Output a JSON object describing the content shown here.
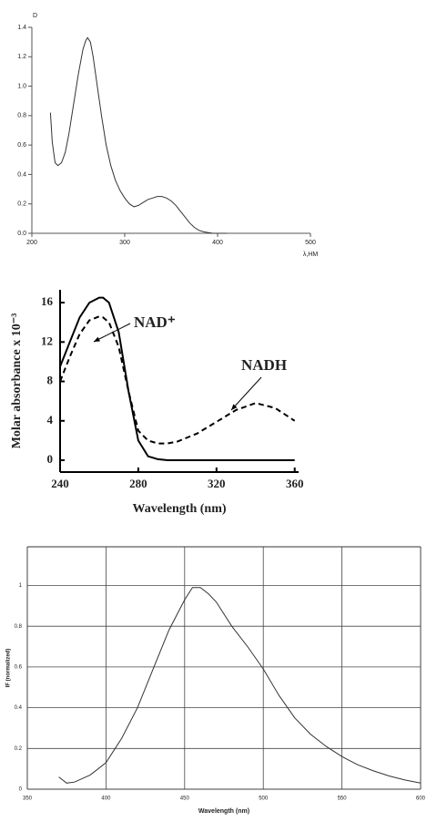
{
  "chart_data": [
    {
      "type": "line",
      "ylabel": "D",
      "xlabel": "λ,HM",
      "color": "#333333",
      "x": [
        220,
        222,
        225,
        228,
        232,
        236,
        240,
        245,
        250,
        255,
        258,
        260,
        263,
        266,
        270,
        275,
        280,
        285,
        290,
        295,
        300,
        305,
        310,
        315,
        320,
        325,
        330,
        335,
        340,
        345,
        350,
        355,
        360,
        365,
        370,
        375,
        380,
        385,
        390,
        395,
        400,
        405,
        410
      ],
      "values": [
        0.82,
        0.62,
        0.48,
        0.46,
        0.48,
        0.55,
        0.68,
        0.88,
        1.08,
        1.25,
        1.31,
        1.33,
        1.3,
        1.2,
        1.02,
        0.8,
        0.6,
        0.46,
        0.36,
        0.29,
        0.24,
        0.2,
        0.18,
        0.19,
        0.21,
        0.23,
        0.24,
        0.25,
        0.25,
        0.24,
        0.22,
        0.19,
        0.15,
        0.11,
        0.07,
        0.04,
        0.02,
        0.01,
        0.005,
        0,
        0,
        0,
        0
      ],
      "xlim": [
        200,
        500
      ],
      "ylim": [
        0,
        1.4
      ],
      "xticks": [
        200,
        300,
        400,
        500
      ],
      "yticks": [
        {
          "value": 0,
          "label": "0.0"
        },
        0.2,
        0.4,
        0.6,
        0.8,
        {
          "value": 1,
          "label": "1.0"
        },
        1.2,
        1.4
      ],
      "grid": false
    },
    {
      "type": "line",
      "xlabel": "Wavelength (nm)",
      "ylabel": "Molar absorbance x 10⁻³",
      "x": [
        240,
        245,
        250,
        255,
        260,
        262,
        265,
        270,
        275,
        280,
        285,
        290,
        295,
        300,
        310,
        320,
        330,
        340,
        350,
        360
      ],
      "series": [
        {
          "name": "NAD⁺",
          "color": "#000000",
          "style": "solid",
          "values": [
            9.5,
            12,
            14.5,
            16,
            16.5,
            16.5,
            16,
            13,
            7,
            2,
            0.4,
            0.1,
            0,
            0,
            0,
            0,
            0,
            0,
            0,
            0
          ]
        },
        {
          "name": "NADH",
          "color": "#000000",
          "style": "dashed",
          "values": [
            8,
            10.5,
            12.8,
            14.2,
            14.6,
            14.5,
            14,
            11.5,
            7,
            3,
            2,
            1.7,
            1.7,
            1.9,
            2.7,
            3.9,
            5.1,
            5.8,
            5.3,
            4
          ]
        }
      ],
      "xlim": [
        240,
        362
      ],
      "ylim": [
        -1.2,
        17.3
      ],
      "xticks": [
        240,
        280,
        320,
        360
      ],
      "yticks": [
        0,
        4,
        8,
        12,
        16
      ],
      "grid": false
    },
    {
      "type": "line",
      "xlabel": "Wavelength (nm)",
      "ylabel": "IF (normalized)",
      "color": "#333333",
      "x": [
        370,
        375,
        380,
        390,
        400,
        410,
        420,
        430,
        440,
        450,
        455,
        460,
        465,
        470,
        480,
        490,
        500,
        510,
        520,
        530,
        540,
        550,
        560,
        570,
        580,
        590,
        600
      ],
      "values": [
        0.06,
        0.03,
        0.035,
        0.07,
        0.13,
        0.25,
        0.4,
        0.59,
        0.78,
        0.93,
        0.99,
        0.99,
        0.96,
        0.92,
        0.8,
        0.7,
        0.59,
        0.46,
        0.35,
        0.27,
        0.21,
        0.16,
        0.12,
        0.09,
        0.065,
        0.045,
        0.03
      ],
      "xlim": [
        350,
        600
      ],
      "ylim": [
        0,
        1.19
      ],
      "xticks": [
        350,
        400,
        450,
        500,
        550,
        600
      ],
      "yticks": [
        0,
        0.2,
        0.4,
        0.6,
        0.8,
        1
      ],
      "grid": true
    }
  ]
}
